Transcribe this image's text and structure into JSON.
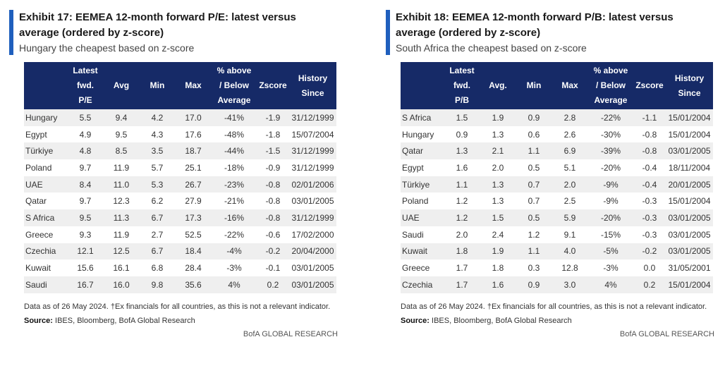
{
  "left": {
    "title": "Exhibit 17: EEMEA 12-month forward P/E: latest versus average (ordered by z-score)",
    "subtitle": "Hungary the cheapest based on z-score",
    "headers": [
      [
        "Latest",
        "fwd.",
        "P/E"
      ],
      [
        "Avg"
      ],
      [
        "Min"
      ],
      [
        "Max"
      ],
      [
        "% above",
        "/ Below",
        "Average"
      ],
      [
        "Zscore"
      ],
      [
        "History",
        "Since"
      ]
    ],
    "rows": [
      [
        "Hungary",
        "5.5",
        "9.4",
        "4.2",
        "17.0",
        "-41%",
        "-1.9",
        "31/12/1999"
      ],
      [
        "Egypt",
        "4.9",
        "9.5",
        "4.3",
        "17.6",
        "-48%",
        "-1.8",
        "15/07/2004"
      ],
      [
        "Türkiye",
        "4.8",
        "8.5",
        "3.5",
        "18.7",
        "-44%",
        "-1.5",
        "31/12/1999"
      ],
      [
        "Poland",
        "9.7",
        "11.9",
        "5.7",
        "25.1",
        "-18%",
        "-0.9",
        "31/12/1999"
      ],
      [
        "UAE",
        "8.4",
        "11.0",
        "5.3",
        "26.7",
        "-23%",
        "-0.8",
        "02/01/2006"
      ],
      [
        "Qatar",
        "9.7",
        "12.3",
        "6.2",
        "27.9",
        "-21%",
        "-0.8",
        "03/01/2005"
      ],
      [
        "S Africa",
        "9.5",
        "11.3",
        "6.7",
        "17.3",
        "-16%",
        "-0.8",
        "31/12/1999"
      ],
      [
        "Greece",
        "9.3",
        "11.9",
        "2.7",
        "52.5",
        "-22%",
        "-0.6",
        "17/02/2000"
      ],
      [
        "Czechia",
        "12.1",
        "12.5",
        "6.7",
        "18.4",
        "-4%",
        "-0.2",
        "20/04/2000"
      ],
      [
        "Kuwait",
        "15.6",
        "16.1",
        "6.8",
        "28.4",
        "-3%",
        "-0.1",
        "03/01/2005"
      ],
      [
        "Saudi",
        "16.7",
        "16.0",
        "9.8",
        "35.6",
        "4%",
        "0.2",
        "03/01/2005"
      ]
    ],
    "note_text": "Data as of 26 May 2024. †Ex financials for all countries, as this is not a relevant indicator. ",
    "note_source_label": "Source:",
    "note_source": " IBES, Bloomberg, BofA Global Research",
    "brand": "BofA GLOBAL RESEARCH"
  },
  "right": {
    "title": "Exhibit 18: EEMEA 12-month forward P/B: latest versus average (ordered by z-score)",
    "subtitle": "South Africa the cheapest based on z-score",
    "headers": [
      [
        "Latest",
        "fwd.",
        "P/B"
      ],
      [
        "Avg."
      ],
      [
        "Min"
      ],
      [
        "Max"
      ],
      [
        "% above",
        "/ Below",
        "Average"
      ],
      [
        "Zscore"
      ],
      [
        "History",
        "Since"
      ]
    ],
    "rows": [
      [
        "S Africa",
        "1.5",
        "1.9",
        "0.9",
        "2.8",
        "-22%",
        "-1.1",
        "15/01/2004"
      ],
      [
        "Hungary",
        "0.9",
        "1.3",
        "0.6",
        "2.6",
        "-30%",
        "-0.8",
        "15/01/2004"
      ],
      [
        "Qatar",
        "1.3",
        "2.1",
        "1.1",
        "6.9",
        "-39%",
        "-0.8",
        "03/01/2005"
      ],
      [
        "Egypt",
        "1.6",
        "2.0",
        "0.5",
        "5.1",
        "-20%",
        "-0.4",
        "18/11/2004"
      ],
      [
        "Türkiye",
        "1.1",
        "1.3",
        "0.7",
        "2.0",
        "-9%",
        "-0.4",
        "20/01/2005"
      ],
      [
        "Poland",
        "1.2",
        "1.3",
        "0.7",
        "2.5",
        "-9%",
        "-0.3",
        "15/01/2004"
      ],
      [
        "UAE",
        "1.2",
        "1.5",
        "0.5",
        "5.9",
        "-20%",
        "-0.3",
        "03/01/2005"
      ],
      [
        "Saudi",
        "2.0",
        "2.4",
        "1.2",
        "9.1",
        "-15%",
        "-0.3",
        "03/01/2005"
      ],
      [
        "Kuwait",
        "1.8",
        "1.9",
        "1.1",
        "4.0",
        "-5%",
        "-0.2",
        "03/01/2005"
      ],
      [
        "Greece",
        "1.7",
        "1.8",
        "0.3",
        "12.8",
        "-3%",
        "0.0",
        "31/05/2001"
      ],
      [
        "Czechia",
        "1.7",
        "1.6",
        "0.9",
        "3.0",
        "4%",
        "0.2",
        "15/01/2004"
      ]
    ],
    "note_text": "Data as of 26 May 2024. †Ex financials for all countries, as this is not a relevant indicator. ",
    "note_source_label": "Source:",
    "note_source": " IBES, Bloomberg, BofA Global Research",
    "brand": "BofA GLOBAL RESEARCH"
  },
  "colors": {
    "accent_bar": "#1f5fbd",
    "header_bg": "#162a67",
    "stripe": "#efefef"
  }
}
